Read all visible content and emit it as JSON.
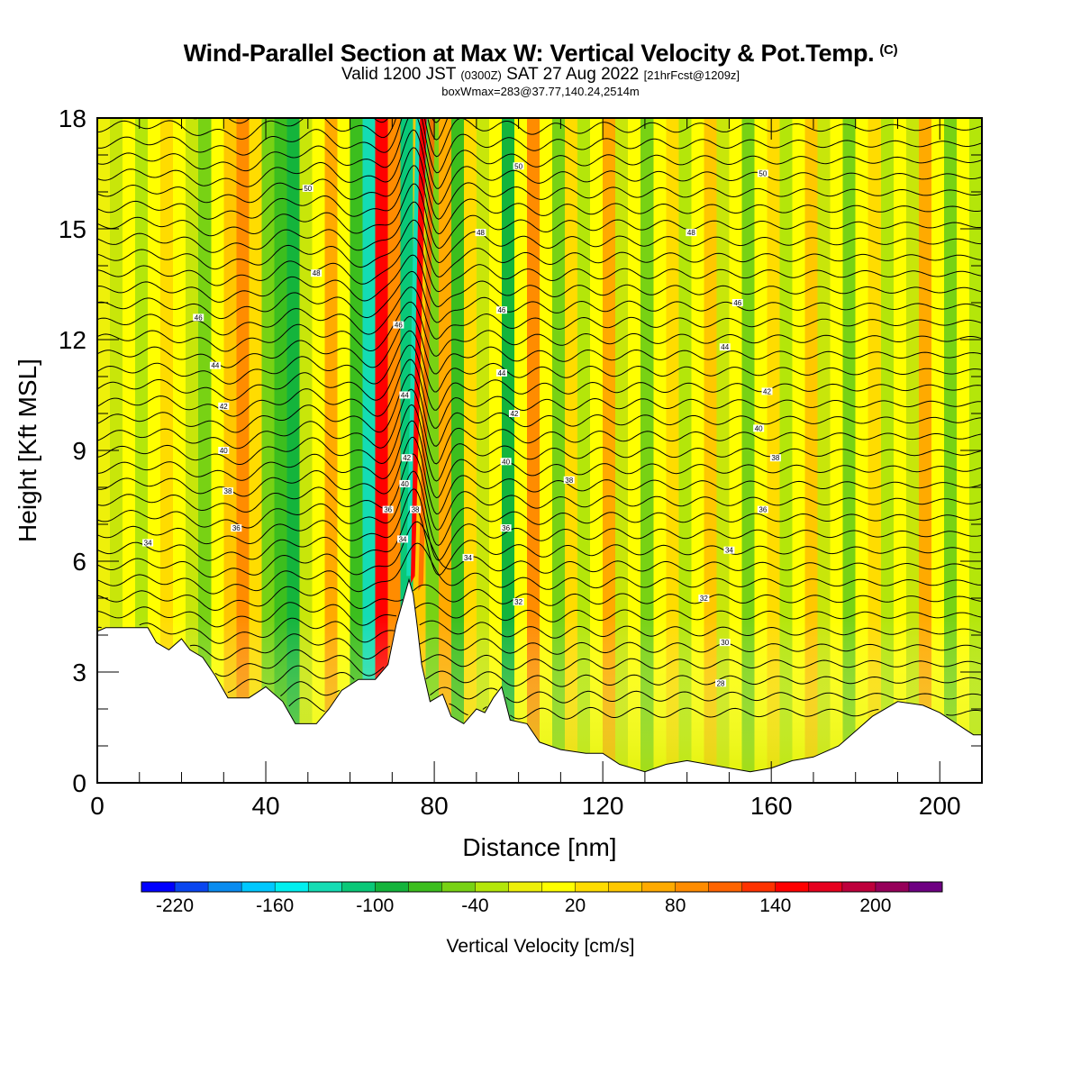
{
  "header": {
    "title": "Wind-Parallel Section at Max W: Vertical Velocity & Pot.Temp.",
    "copyright_mark": "(C)",
    "valid_prefix": "Valid 1200 JST",
    "valid_utc": "(0300Z)",
    "valid_date": "SAT 27 Aug 2022",
    "forecast_info": "[21hrFcst@1209z]",
    "box_info": "boxWmax=283@37.77,140.24,2514m"
  },
  "chart_data": {
    "type": "heatmap",
    "xlabel": "Distance [nm]",
    "ylabel": "Height [Kft MSL]",
    "xlim": [
      0,
      210
    ],
    "ylim": [
      0,
      18
    ],
    "x_ticks": [
      0,
      40,
      80,
      120,
      160,
      200
    ],
    "y_ticks": [
      0,
      3,
      6,
      9,
      12,
      15,
      18
    ],
    "colorbar": {
      "label": "Vertical Velocity [cm/s]",
      "levels": [
        -240,
        -220,
        -200,
        -180,
        -160,
        -140,
        -120,
        -100,
        -80,
        -60,
        -40,
        -20,
        0,
        20,
        40,
        60,
        80,
        100,
        120,
        140,
        160,
        180,
        200,
        220,
        240
      ],
      "tick_labels": [
        "-220",
        "-160",
        "-100",
        "-40",
        "20",
        "80",
        "140",
        "200"
      ],
      "colors": [
        "#0000ff",
        "#0a46f0",
        "#0a8cf0",
        "#00c8ff",
        "#00f0f0",
        "#14dcb4",
        "#0ac878",
        "#14b43c",
        "#3cbe1e",
        "#78d214",
        "#b4e60a",
        "#eef00a",
        "#ffff00",
        "#ffdc00",
        "#ffc800",
        "#ffaa00",
        "#ff8c00",
        "#ff6400",
        "#ff3200",
        "#ff0000",
        "#e6001e",
        "#be003c",
        "#96005a",
        "#6e0082"
      ]
    },
    "max_updraft_cm_s": 283,
    "terrain_kft": [
      [
        0,
        4.1
      ],
      [
        2,
        4.2
      ],
      [
        12,
        4.2
      ],
      [
        14,
        3.8
      ],
      [
        17,
        3.6
      ],
      [
        20,
        3.9
      ],
      [
        22,
        3.6
      ],
      [
        25,
        3.4
      ],
      [
        28,
        2.9
      ],
      [
        31,
        2.3
      ],
      [
        36,
        2.3
      ],
      [
        40,
        2.6
      ],
      [
        44,
        2.2
      ],
      [
        47,
        1.6
      ],
      [
        52,
        1.6
      ],
      [
        55,
        2.0
      ],
      [
        58,
        2.5
      ],
      [
        62,
        2.8
      ],
      [
        66,
        2.8
      ],
      [
        69,
        3.2
      ],
      [
        71,
        4.3
      ],
      [
        73,
        5.1
      ],
      [
        74,
        5.5
      ],
      [
        75,
        5.1
      ],
      [
        76,
        4.2
      ],
      [
        77,
        3.2
      ],
      [
        79,
        2.2
      ],
      [
        82,
        2.4
      ],
      [
        84,
        1.8
      ],
      [
        87,
        1.6
      ],
      [
        90,
        2.0
      ],
      [
        92,
        1.9
      ],
      [
        94,
        2.3
      ],
      [
        96,
        2.6
      ],
      [
        98,
        1.7
      ],
      [
        102,
        1.6
      ],
      [
        105,
        1.1
      ],
      [
        110,
        0.9
      ],
      [
        116,
        0.8
      ],
      [
        120,
        0.8
      ],
      [
        124,
        0.5
      ],
      [
        130,
        0.3
      ],
      [
        135,
        0.5
      ],
      [
        140,
        0.6
      ],
      [
        145,
        0.5
      ],
      [
        150,
        0.4
      ],
      [
        155,
        0.3
      ],
      [
        160,
        0.4
      ],
      [
        165,
        0.6
      ],
      [
        170,
        0.7
      ],
      [
        176,
        1.0
      ],
      [
        180,
        1.4
      ],
      [
        184,
        1.8
      ],
      [
        190,
        2.2
      ],
      [
        196,
        2.1
      ],
      [
        200,
        1.9
      ],
      [
        204,
        1.6
      ],
      [
        208,
        1.3
      ],
      [
        210,
        1.3
      ]
    ],
    "theta_labels": [
      {
        "x": 12,
        "y": 6.5,
        "text": "34"
      },
      {
        "x": 33,
        "y": 6.9,
        "text": "36"
      },
      {
        "x": 31,
        "y": 7.9,
        "text": "38"
      },
      {
        "x": 30,
        "y": 9.0,
        "text": "40"
      },
      {
        "x": 30,
        "y": 10.2,
        "text": "42"
      },
      {
        "x": 28,
        "y": 11.3,
        "text": "44"
      },
      {
        "x": 24,
        "y": 12.6,
        "text": "46"
      },
      {
        "x": 52,
        "y": 13.8,
        "text": "48"
      },
      {
        "x": 50,
        "y": 16.1,
        "text": "50"
      },
      {
        "x": 69,
        "y": 7.4,
        "text": "36"
      },
      {
        "x": 72.5,
        "y": 6.6,
        "text": "34"
      },
      {
        "x": 73,
        "y": 8.1,
        "text": "40"
      },
      {
        "x": 75.5,
        "y": 7.4,
        "text": "38"
      },
      {
        "x": 73.5,
        "y": 8.8,
        "text": "42"
      },
      {
        "x": 73,
        "y": 10.5,
        "text": "44"
      },
      {
        "x": 71.5,
        "y": 12.4,
        "text": "46"
      },
      {
        "x": 88,
        "y": 6.1,
        "text": "34"
      },
      {
        "x": 97,
        "y": 6.9,
        "text": "36"
      },
      {
        "x": 97,
        "y": 8.7,
        "text": "40"
      },
      {
        "x": 99,
        "y": 10.0,
        "text": "42"
      },
      {
        "x": 96,
        "y": 11.1,
        "text": "44"
      },
      {
        "x": 96,
        "y": 12.8,
        "text": "46"
      },
      {
        "x": 91,
        "y": 14.9,
        "text": "48"
      },
      {
        "x": 100,
        "y": 16.7,
        "text": "50"
      },
      {
        "x": 100,
        "y": 4.9,
        "text": "32"
      },
      {
        "x": 112,
        "y": 8.2,
        "text": "38"
      },
      {
        "x": 150,
        "y": 6.3,
        "text": "34"
      },
      {
        "x": 144,
        "y": 5.0,
        "text": "32"
      },
      {
        "x": 149,
        "y": 3.8,
        "text": "30"
      },
      {
        "x": 148,
        "y": 2.7,
        "text": "28"
      },
      {
        "x": 158,
        "y": 7.4,
        "text": "36"
      },
      {
        "x": 161,
        "y": 8.8,
        "text": "38"
      },
      {
        "x": 157,
        "y": 9.6,
        "text": "40"
      },
      {
        "x": 159,
        "y": 10.6,
        "text": "42"
      },
      {
        "x": 149,
        "y": 11.8,
        "text": "44"
      },
      {
        "x": 152,
        "y": 13.0,
        "text": "46"
      },
      {
        "x": 141,
        "y": 14.9,
        "text": "48"
      },
      {
        "x": 158,
        "y": 16.5,
        "text": "50"
      }
    ]
  }
}
